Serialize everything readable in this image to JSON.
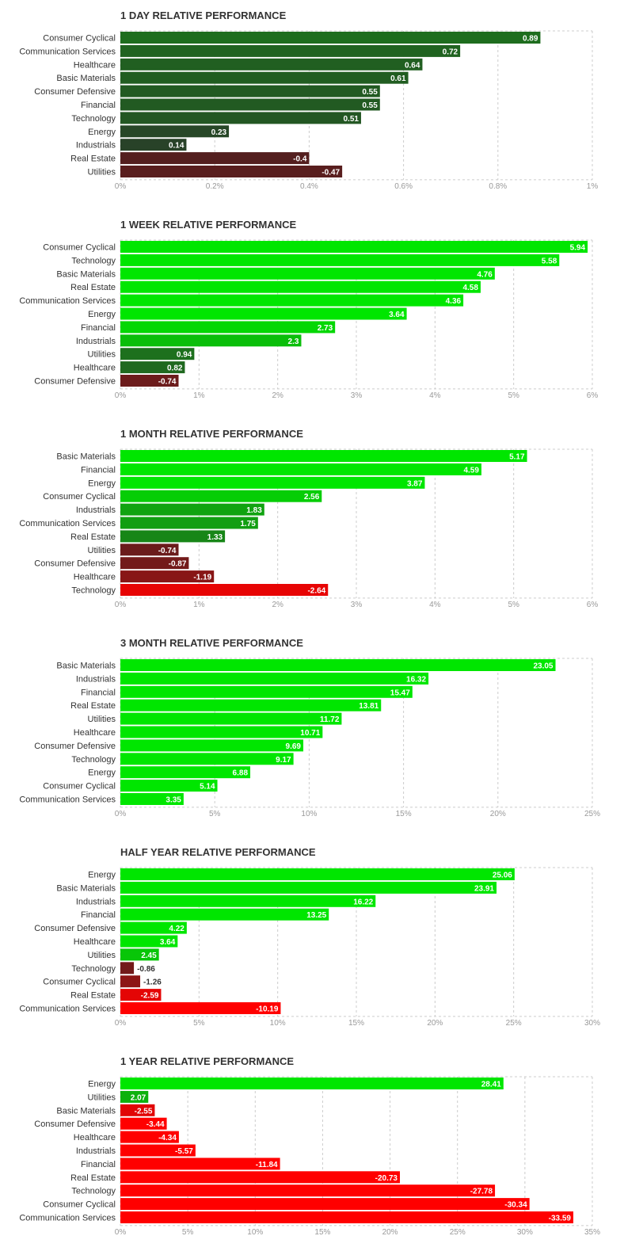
{
  "chart_data": [
    {
      "type": "bar",
      "orientation": "horizontal",
      "title": "1 DAY RELATIVE PERFORMANCE",
      "categories": [
        "Consumer Cyclical",
        "Communication Services",
        "Healthcare",
        "Basic Materials",
        "Consumer Defensive",
        "Financial",
        "Technology",
        "Energy",
        "Industrials",
        "Real Estate",
        "Utilities"
      ],
      "values": [
        0.89,
        0.72,
        0.64,
        0.61,
        0.55,
        0.55,
        0.51,
        0.23,
        0.14,
        -0.4,
        -0.47
      ],
      "value_labels": [
        "0.89",
        "0.72",
        "0.64",
        "0.61",
        "0.55",
        "0.55",
        "0.51",
        "0.23",
        "0.14",
        "-0.4",
        "-0.47"
      ],
      "xlim": [
        0,
        1
      ],
      "ticks": [
        0,
        0.2,
        0.4,
        0.6,
        0.8,
        1
      ],
      "tick_labels": [
        "0%",
        "0.2%",
        "0.4%",
        "0.6%",
        "0.8%",
        "1%"
      ],
      "grid": true
    },
    {
      "type": "bar",
      "orientation": "horizontal",
      "title": "1 WEEK RELATIVE PERFORMANCE",
      "categories": [
        "Consumer Cyclical",
        "Technology",
        "Basic Materials",
        "Real Estate",
        "Communication Services",
        "Energy",
        "Financial",
        "Industrials",
        "Utilities",
        "Healthcare",
        "Consumer Defensive"
      ],
      "values": [
        5.94,
        5.58,
        4.76,
        4.58,
        4.36,
        3.64,
        2.73,
        2.3,
        0.94,
        0.82,
        -0.74
      ],
      "value_labels": [
        "5.94",
        "5.58",
        "4.76",
        "4.58",
        "4.36",
        "3.64",
        "2.73",
        "2.3",
        "0.94",
        "0.82",
        "-0.74"
      ],
      "xlim": [
        0,
        6
      ],
      "ticks": [
        0,
        1,
        2,
        3,
        4,
        5,
        6
      ],
      "tick_labels": [
        "0%",
        "1%",
        "2%",
        "3%",
        "4%",
        "5%",
        "6%"
      ],
      "grid": true
    },
    {
      "type": "bar",
      "orientation": "horizontal",
      "title": "1 MONTH RELATIVE PERFORMANCE",
      "categories": [
        "Basic Materials",
        "Financial",
        "Energy",
        "Consumer Cyclical",
        "Industrials",
        "Communication Services",
        "Real Estate",
        "Utilities",
        "Consumer Defensive",
        "Healthcare",
        "Technology"
      ],
      "values": [
        5.17,
        4.59,
        3.87,
        2.56,
        1.83,
        1.75,
        1.33,
        -0.74,
        -0.87,
        -1.19,
        -2.64
      ],
      "value_labels": [
        "5.17",
        "4.59",
        "3.87",
        "2.56",
        "1.83",
        "1.75",
        "1.33",
        "-0.74",
        "-0.87",
        "-1.19",
        "-2.64"
      ],
      "xlim": [
        0,
        6
      ],
      "ticks": [
        0,
        1,
        2,
        3,
        4,
        5,
        6
      ],
      "tick_labels": [
        "0%",
        "1%",
        "2%",
        "3%",
        "4%",
        "5%",
        "6%"
      ],
      "grid": true
    },
    {
      "type": "bar",
      "orientation": "horizontal",
      "title": "3 MONTH RELATIVE PERFORMANCE",
      "categories": [
        "Basic Materials",
        "Industrials",
        "Financial",
        "Real Estate",
        "Utilities",
        "Healthcare",
        "Consumer Defensive",
        "Technology",
        "Energy",
        "Consumer Cyclical",
        "Communication Services"
      ],
      "values": [
        23.05,
        16.32,
        15.47,
        13.81,
        11.72,
        10.71,
        9.69,
        9.17,
        6.88,
        5.14,
        3.35
      ],
      "value_labels": [
        "23.05",
        "16.32",
        "15.47",
        "13.81",
        "11.72",
        "10.71",
        "9.69",
        "9.17",
        "6.88",
        "5.14",
        "3.35"
      ],
      "xlim": [
        0,
        25
      ],
      "ticks": [
        0,
        5,
        10,
        15,
        20,
        25
      ],
      "tick_labels": [
        "0%",
        "5%",
        "10%",
        "15%",
        "20%",
        "25%"
      ],
      "grid": true
    },
    {
      "type": "bar",
      "orientation": "horizontal",
      "title": "HALF YEAR RELATIVE PERFORMANCE",
      "categories": [
        "Energy",
        "Basic Materials",
        "Industrials",
        "Financial",
        "Consumer Defensive",
        "Healthcare",
        "Utilities",
        "Technology",
        "Consumer Cyclical",
        "Real Estate",
        "Communication Services"
      ],
      "values": [
        25.06,
        23.91,
        16.22,
        13.25,
        4.22,
        3.64,
        2.45,
        -0.86,
        -1.26,
        -2.59,
        -10.19
      ],
      "value_labels": [
        "25.06",
        "23.91",
        "16.22",
        "13.25",
        "4.22",
        "3.64",
        "2.45",
        "-0.86",
        "-1.26",
        "-2.59",
        "-10.19"
      ],
      "xlim": [
        0,
        30
      ],
      "ticks": [
        0,
        5,
        10,
        15,
        20,
        25,
        30
      ],
      "tick_labels": [
        "0%",
        "5%",
        "10%",
        "15%",
        "20%",
        "25%",
        "30%"
      ],
      "grid": true
    },
    {
      "type": "bar",
      "orientation": "horizontal",
      "title": "1 YEAR RELATIVE PERFORMANCE",
      "categories": [
        "Energy",
        "Utilities",
        "Basic Materials",
        "Consumer Defensive",
        "Healthcare",
        "Industrials",
        "Financial",
        "Real Estate",
        "Technology",
        "Consumer Cyclical",
        "Communication Services"
      ],
      "values": [
        28.41,
        2.07,
        -2.55,
        -3.44,
        -4.34,
        -5.57,
        -11.84,
        -20.73,
        -27.78,
        -30.34,
        -33.59
      ],
      "value_labels": [
        "28.41",
        "2.07",
        "-2.55",
        "-3.44",
        "-4.34",
        "-5.57",
        "-11.84",
        "-20.73",
        "-27.78",
        "-30.34",
        "-33.59"
      ],
      "xlim": [
        0,
        35
      ],
      "ticks": [
        0,
        5,
        10,
        15,
        20,
        25,
        30,
        35
      ],
      "tick_labels": [
        "0%",
        "5%",
        "10%",
        "15%",
        "20%",
        "25%",
        "30%",
        "35%"
      ],
      "grid": true
    }
  ],
  "colors": {
    "positive_strong": "#00e600",
    "positive_dark": "#2a3a2a",
    "negative_dark": "#3a2424",
    "negative_strong": "#ff0000",
    "grid": "#cccccc",
    "tick_text": "#999999",
    "label_text": "#333333",
    "value_text_on_bar": "#ffffff",
    "value_text_off_bar": "#333333"
  }
}
